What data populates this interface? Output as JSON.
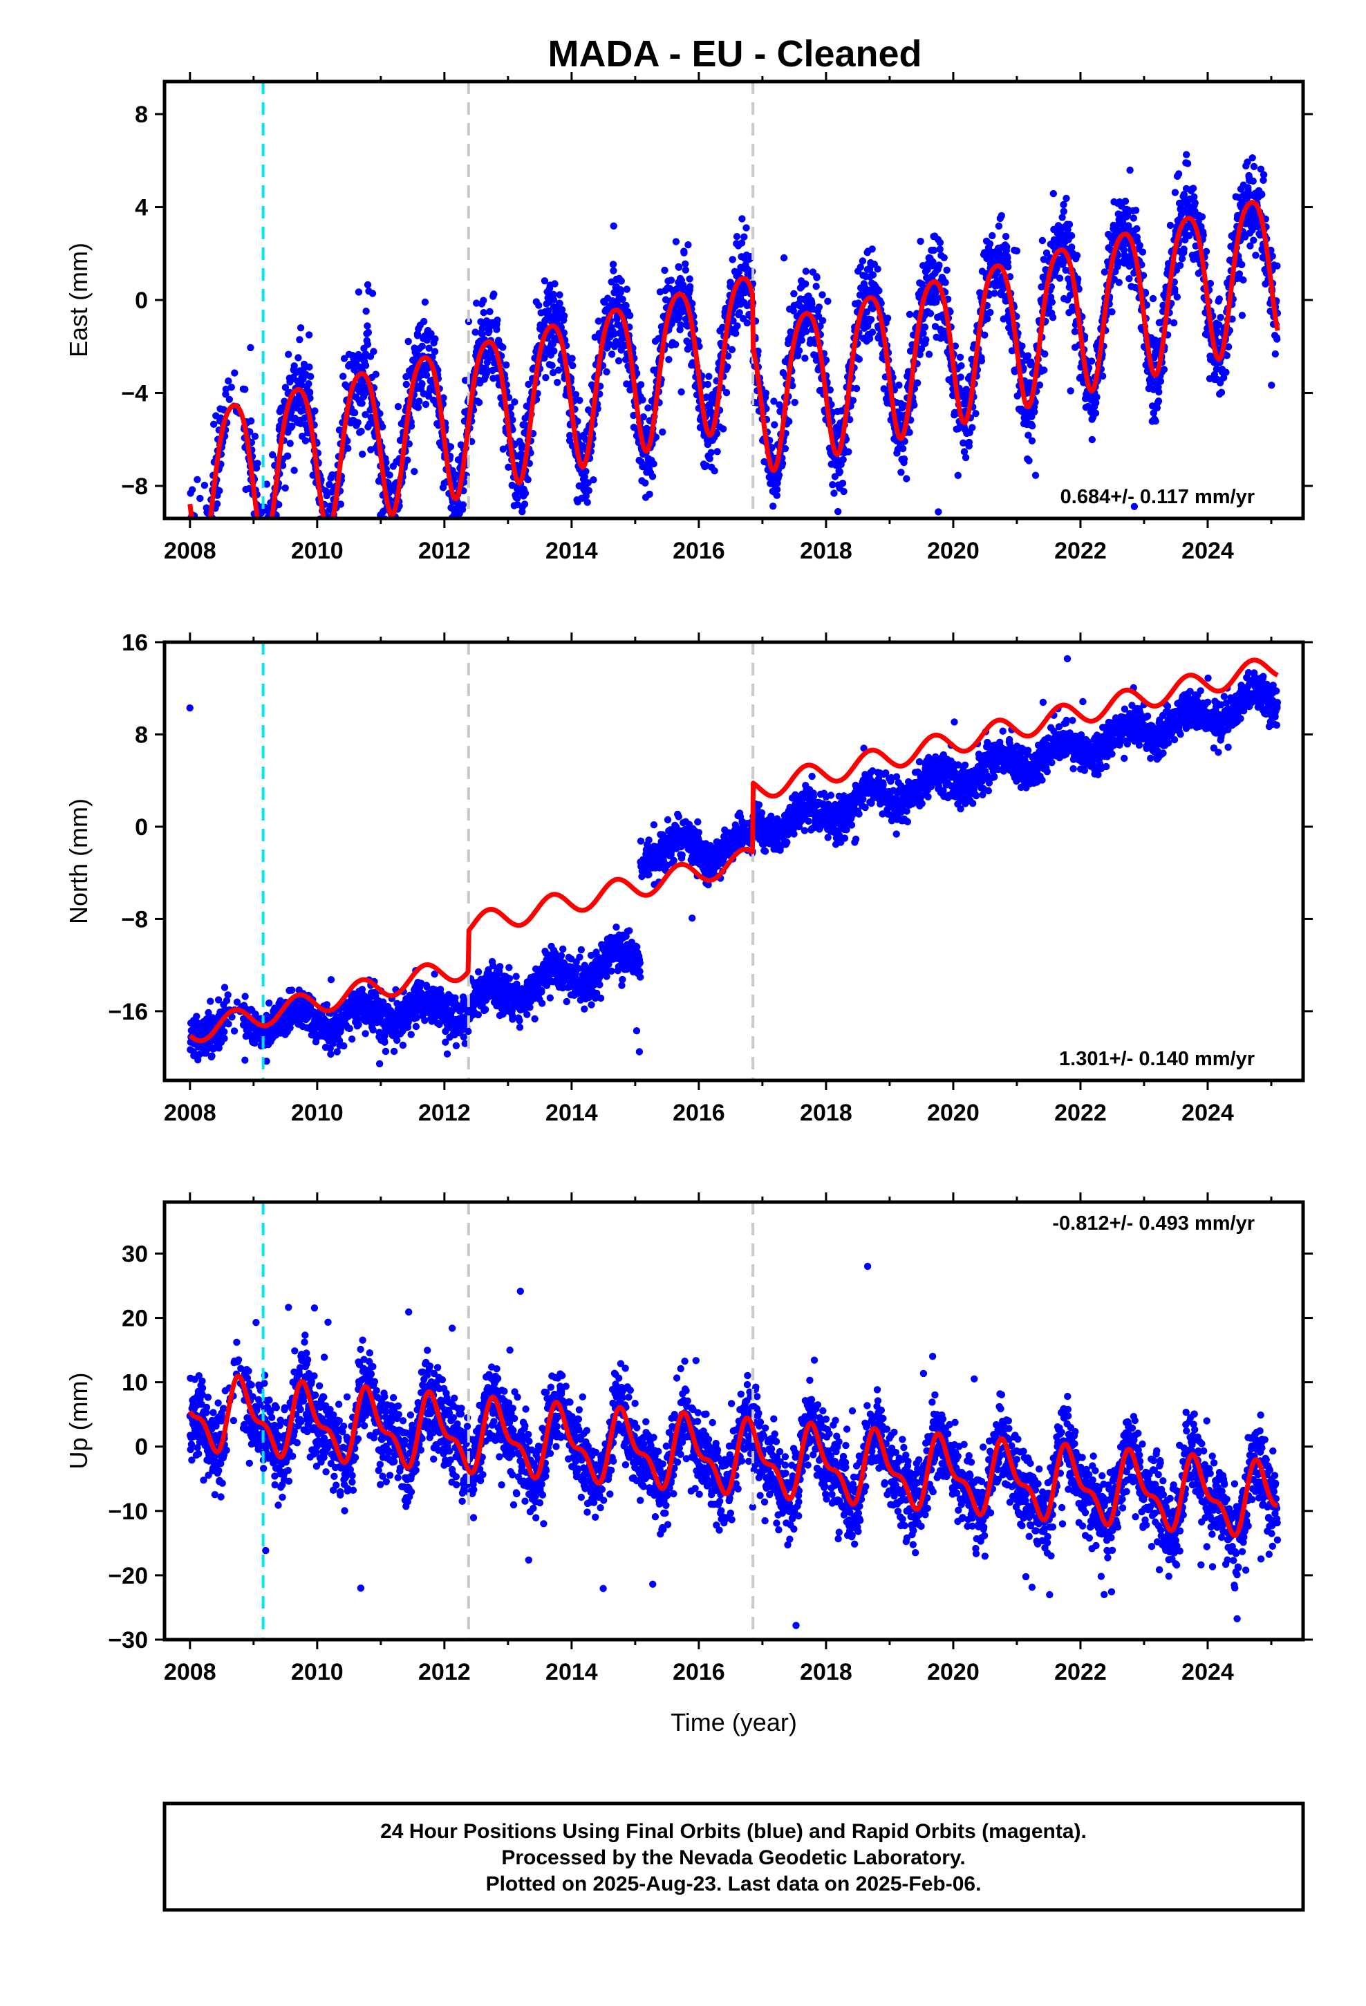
{
  "title": "MADA  - EU - Cleaned",
  "colors": {
    "points": "#0000ff",
    "model": "#ff0000",
    "cyan_line": "#00e5ee",
    "gray_line": "#c8c8c8"
  },
  "chart_data": [
    {
      "type": "scatter",
      "ylabel": "East (mm)",
      "xlim": [
        2007.6,
        2025.5
      ],
      "ylim": [
        -9.4,
        9.4
      ],
      "yticks": [
        -8,
        -4,
        0,
        4,
        8
      ],
      "xticks": [
        2008,
        2010,
        2012,
        2014,
        2016,
        2018,
        2020,
        2022,
        2024
      ],
      "vlines": {
        "cyan": [
          2009.15
        ],
        "gray": [
          2012.38,
          2016.85
        ]
      },
      "rate_text": "0.684+/- 0.117 mm/yr",
      "rate_position": "bottom-right",
      "model": {
        "offset": -1.9,
        "slope": 0.684,
        "ref_year": 2016.5,
        "amp1": 3.2,
        "phase1": 0.43,
        "amp2": 0.5,
        "phase2": 0.3,
        "steps": [
          {
            "x": 2016.85,
            "delta": -2.2
          }
        ]
      },
      "scatter": {
        "x_start": 2008.0,
        "x_end": 2025.1,
        "count": 4200,
        "noise": 1.3,
        "gap": [
          2008.55,
          2008.85
        ]
      },
      "series": [
        {
          "name": "Final Orbits (blue)"
        }
      ]
    },
    {
      "type": "scatter",
      "ylabel": "North (mm)",
      "xlim": [
        2007.6,
        2025.5
      ],
      "ylim": [
        -22,
        16
      ],
      "yticks": [
        -16,
        -8,
        0,
        8,
        16
      ],
      "xticks": [
        2008,
        2010,
        2012,
        2014,
        2016,
        2018,
        2020,
        2022,
        2024
      ],
      "vlines": {
        "cyan": [
          2009.15
        ],
        "gray": [
          2012.38,
          2016.85
        ]
      },
      "rate_text": "1.301+/- 0.140 mm/yr",
      "rate_position": "bottom-right",
      "model": {
        "offset": -17.8,
        "slope": 1.301,
        "ref_year": 2008.0,
        "amp1": 1.0,
        "phase1": 0.45,
        "amp2": 0.0,
        "phase2": 0.0,
        "steps": [
          {
            "x": 2012.38,
            "delta": 3.5
          },
          {
            "x": 2016.85,
            "delta": 6.0
          }
        ]
      },
      "data_segments": [
        {
          "x0": 2008.0,
          "x1": 2012.38,
          "y0": -17.3,
          "y1": -15.8,
          "noise": 1.2
        },
        {
          "x0": 2012.38,
          "x1": 2015.08,
          "y0": -15.2,
          "y1": -11.2,
          "noise": 1.2
        },
        {
          "x0": 2015.08,
          "x1": 2016.85,
          "y0": -2.2,
          "y1": -1.6,
          "noise": 1.1
        },
        {
          "x0": 2016.85,
          "x1": 2025.1,
          "y0": -0.2,
          "y1": 11.2,
          "noise": 1.1
        }
      ],
      "scatter": {
        "x_start": 2008.0,
        "x_end": 2025.1,
        "count": 4200,
        "noise": 1.2,
        "gap": [
          2008.55,
          2008.85
        ]
      },
      "series": [
        {
          "name": "Final Orbits (blue)"
        }
      ]
    },
    {
      "type": "scatter",
      "ylabel": "Up (mm)",
      "xlim": [
        2007.6,
        2025.5
      ],
      "ylim": [
        -30,
        38
      ],
      "yticks": [
        -30,
        -20,
        -10,
        0,
        10,
        20,
        30
      ],
      "xticks": [
        2008,
        2010,
        2012,
        2014,
        2016,
        2018,
        2020,
        2022,
        2024
      ],
      "xlabel": "Time (year)",
      "vlines": {
        "cyan": [
          2009.15
        ],
        "gray": [
          2012.38,
          2016.85
        ]
      },
      "rate_text": "-0.812+/- 0.493 mm/yr",
      "rate_position": "top-right",
      "model": {
        "offset": 2.0,
        "slope": -0.812,
        "ref_year": 2012.0,
        "amp1": 4.8,
        "phase1": 0.58,
        "amp2": 2.2,
        "phase2": 0.1,
        "steps": [
          {
            "x": 2009.15,
            "delta": 0.0
          }
        ]
      },
      "scatter": {
        "x_start": 2008.0,
        "x_end": 2025.1,
        "count": 4200,
        "noise": 4.3,
        "gap": [
          2008.55,
          2008.85
        ]
      },
      "series": [
        {
          "name": "Final Orbits (blue)"
        }
      ]
    }
  ],
  "footer": {
    "line1": "24 Hour Positions Using Final Orbits (blue) and Rapid Orbits (magenta).",
    "line2": "Processed by the Nevada Geodetic Laboratory.",
    "line3": "Plotted on 2025-Aug-23. Last data on 2025-Feb-06."
  }
}
